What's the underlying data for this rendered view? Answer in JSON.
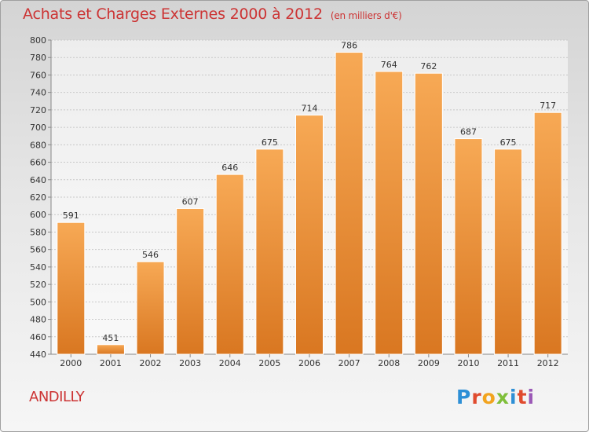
{
  "header": {
    "title": "Achats et Charges Externes 2000 à 2012",
    "unit": "(en milliers d'€)"
  },
  "footer": {
    "commune": "ANDILLY",
    "logo_text": "Proxiti"
  },
  "colors": {
    "bar_top": "#f7a955",
    "bar_bottom": "#d97721",
    "title": "#cc3333"
  },
  "chart_data": {
    "type": "bar",
    "title": "Achats et Charges Externes 2000 à 2012",
    "xlabel": "",
    "ylabel": "",
    "categories": [
      "2000",
      "2001",
      "2002",
      "2003",
      "2004",
      "2005",
      "2006",
      "2007",
      "2008",
      "2009",
      "2010",
      "2011",
      "2012"
    ],
    "values": [
      591,
      451,
      546,
      607,
      646,
      675,
      714,
      786,
      764,
      762,
      687,
      675,
      717
    ],
    "ylim": [
      440,
      800
    ],
    "yticks": [
      440,
      460,
      480,
      500,
      520,
      540,
      560,
      580,
      600,
      620,
      640,
      660,
      680,
      700,
      720,
      740,
      760,
      780,
      800
    ],
    "grid": true,
    "data_labels": true
  }
}
